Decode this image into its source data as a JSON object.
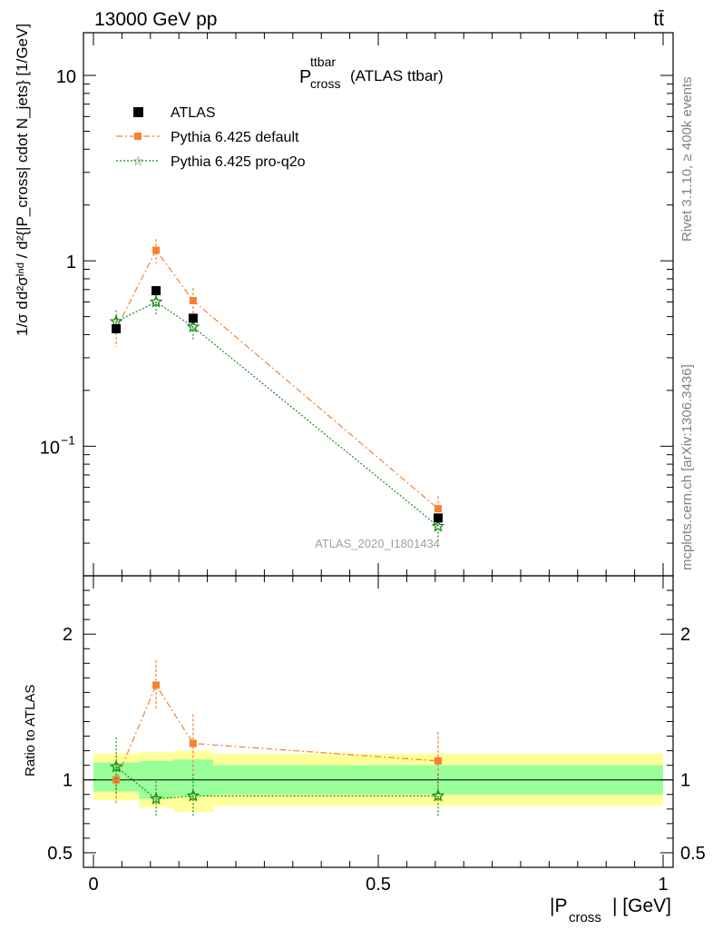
{
  "header": {
    "energy": "13000 GeV pp",
    "process": "tt̄",
    "side_version": "Rivet 3.1.10, ≥ 400k events",
    "side_site": "mcplots.cern.ch [arXiv:1306.3436]",
    "analysis_id": "ATLAS_2020_I1801434"
  },
  "title": {
    "main": "P",
    "sup": "ttbar",
    "sub": "cross",
    "extra": "(ATLAS ttbar)"
  },
  "axes": {
    "ylabel_main": "d²σᴵⁿᵈ / d²{|P_cross| cdot N_jets} [1/GeV]",
    "ylabel_frac": "1/σ d",
    "ylabel_ratio": "Ratio to ATLAS",
    "xlabel_pre": "|P",
    "xlabel_sub": "cross",
    "xlabel_post": "| [GeV]",
    "ticks_main_y": [
      "10",
      "1",
      "10"
    ],
    "ticks_main_y_exp": "−1",
    "ticks_ratio_y": [
      "2",
      "1",
      "0.5"
    ],
    "ticks_x": [
      "0",
      "0.5",
      "1"
    ]
  },
  "legend": {
    "atlas": "ATLAS",
    "default": "Pythia 6.425 default",
    "proq2o": "Pythia 6.425 pro-q2o"
  },
  "colors": {
    "atlas": "#000000",
    "default": "#f58231",
    "proq2o": "#1a8a1a",
    "band_inner": "#99ff99",
    "band_outer": "#ffff99"
  },
  "chart_data": {
    "type": "scatter",
    "xlim": [
      0,
      1
    ],
    "ylim_main": [
      0.02,
      17
    ],
    "ylim_ratio": [
      0.4,
      2.4
    ],
    "y_scale": "log",
    "bins": [
      [
        0,
        0.08
      ],
      [
        0.08,
        0.14
      ],
      [
        0.14,
        0.21
      ],
      [
        0.21,
        1.0
      ]
    ],
    "series": [
      {
        "name": "ATLAS",
        "x": [
          0.04,
          0.11,
          0.175,
          0.605
        ],
        "y": [
          0.43,
          0.69,
          0.49,
          0.041
        ],
        "ratio": [
          1,
          1,
          1,
          1
        ]
      },
      {
        "name": "Pythia 6.425 default",
        "x": [
          0.04,
          0.11,
          0.175,
          0.605
        ],
        "y": [
          0.43,
          1.14,
          0.61,
          0.046
        ],
        "yerr_frac": [
          0.2,
          0.15,
          0.17,
          0.17
        ],
        "ratio": [
          1.0,
          1.65,
          1.25,
          1.13
        ],
        "ratio_err": [
          0.17,
          0.17,
          0.2,
          0.2
        ]
      },
      {
        "name": "Pythia 6.425 pro-q2o",
        "x": [
          0.04,
          0.11,
          0.175,
          0.605
        ],
        "y": [
          0.47,
          0.6,
          0.44,
          0.037
        ],
        "yerr_frac": [
          0.15,
          0.15,
          0.15,
          0.17
        ],
        "ratio": [
          1.09,
          0.87,
          0.89,
          0.89
        ],
        "ratio_err": [
          0.2,
          0.12,
          0.15,
          0.15
        ]
      }
    ],
    "band_inner": [
      [
        0.92,
        1.12
      ],
      [
        0.87,
        1.13
      ],
      [
        0.89,
        1.14
      ],
      [
        0.9,
        1.1
      ]
    ],
    "band_outer": [
      [
        0.86,
        1.18
      ],
      [
        0.81,
        1.19
      ],
      [
        0.78,
        1.2
      ],
      [
        0.82,
        1.18
      ]
    ]
  }
}
